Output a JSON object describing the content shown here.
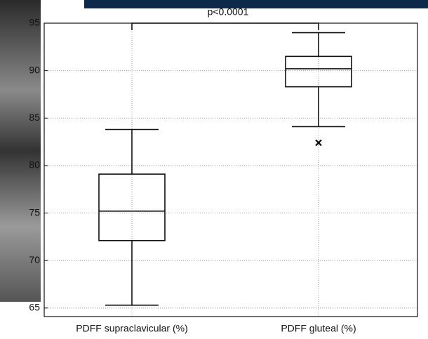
{
  "chart_data": {
    "type": "box",
    "categories": [
      "PDFF supraclavicular (%)",
      "PDFF gluteal (%)"
    ],
    "boxes": [
      {
        "min": 65.3,
        "q1": 72.1,
        "median": 75.2,
        "q3": 79.1,
        "max": 83.8,
        "outliers": []
      },
      {
        "min": 84.1,
        "q1": 88.3,
        "median": 90.2,
        "q3": 91.5,
        "max": 94.0,
        "outliers": [
          82.4
        ]
      }
    ],
    "annotation": "p<0.0001",
    "ylim": [
      64.1,
      95
    ],
    "yticks": [
      65,
      70,
      75,
      80,
      85,
      90,
      95
    ],
    "grid": true,
    "color": "#111111"
  }
}
